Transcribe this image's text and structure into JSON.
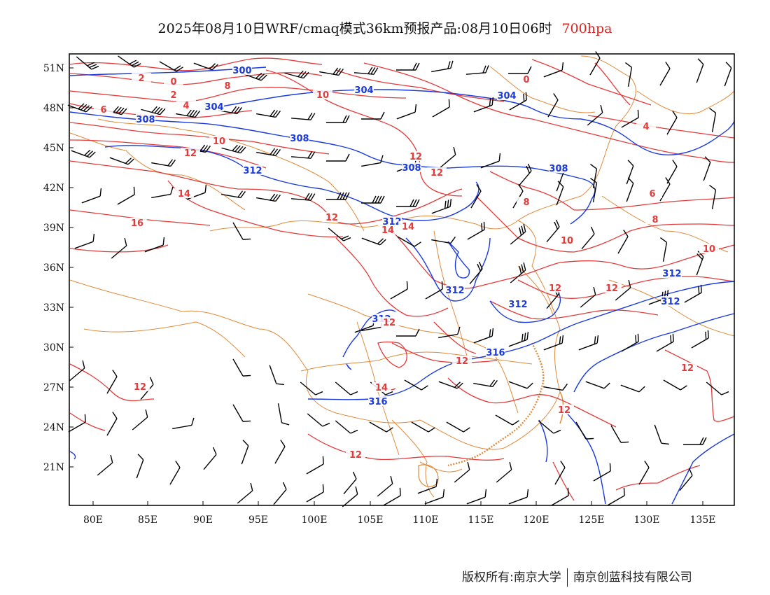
{
  "title": {
    "main": "2025年08月10日WRF/cmaq模式36km预报产品:08月10日06时",
    "level": "700hpa"
  },
  "map": {
    "lon_labels": [
      "80E",
      "85E",
      "90E",
      "95E",
      "100E",
      "105E",
      "110E",
      "115E",
      "120E",
      "125E",
      "130E",
      "135E"
    ],
    "lat_labels": [
      "51N",
      "48N",
      "45N",
      "42N",
      "39N",
      "36N",
      "33N",
      "30N",
      "27N",
      "24N",
      "21N"
    ],
    "height_contour_labels": [
      "300",
      "304",
      "304",
      "304",
      "308",
      "308",
      "308",
      "308",
      "312",
      "312",
      "312",
      "312",
      "312",
      "312",
      "312",
      "316",
      "316"
    ],
    "temperature_contour_labels": [
      "0",
      "0",
      "2",
      "2",
      "4",
      "4",
      "6",
      "6",
      "8",
      "8",
      "8",
      "10",
      "10",
      "10",
      "10",
      "12",
      "12",
      "12",
      "12",
      "12",
      "12",
      "12",
      "12",
      "12",
      "12",
      "12",
      "12",
      "14",
      "14",
      "14",
      "14",
      "16"
    ],
    "colors": {
      "height": "#1a3adf",
      "temperature": "#e53a3a",
      "border": "#e08a3a",
      "wind": "#000000",
      "level": "#e02020"
    }
  },
  "copyright": {
    "left": "版权所有:南京大学",
    "right": "南京创蓝科技有限公司"
  }
}
